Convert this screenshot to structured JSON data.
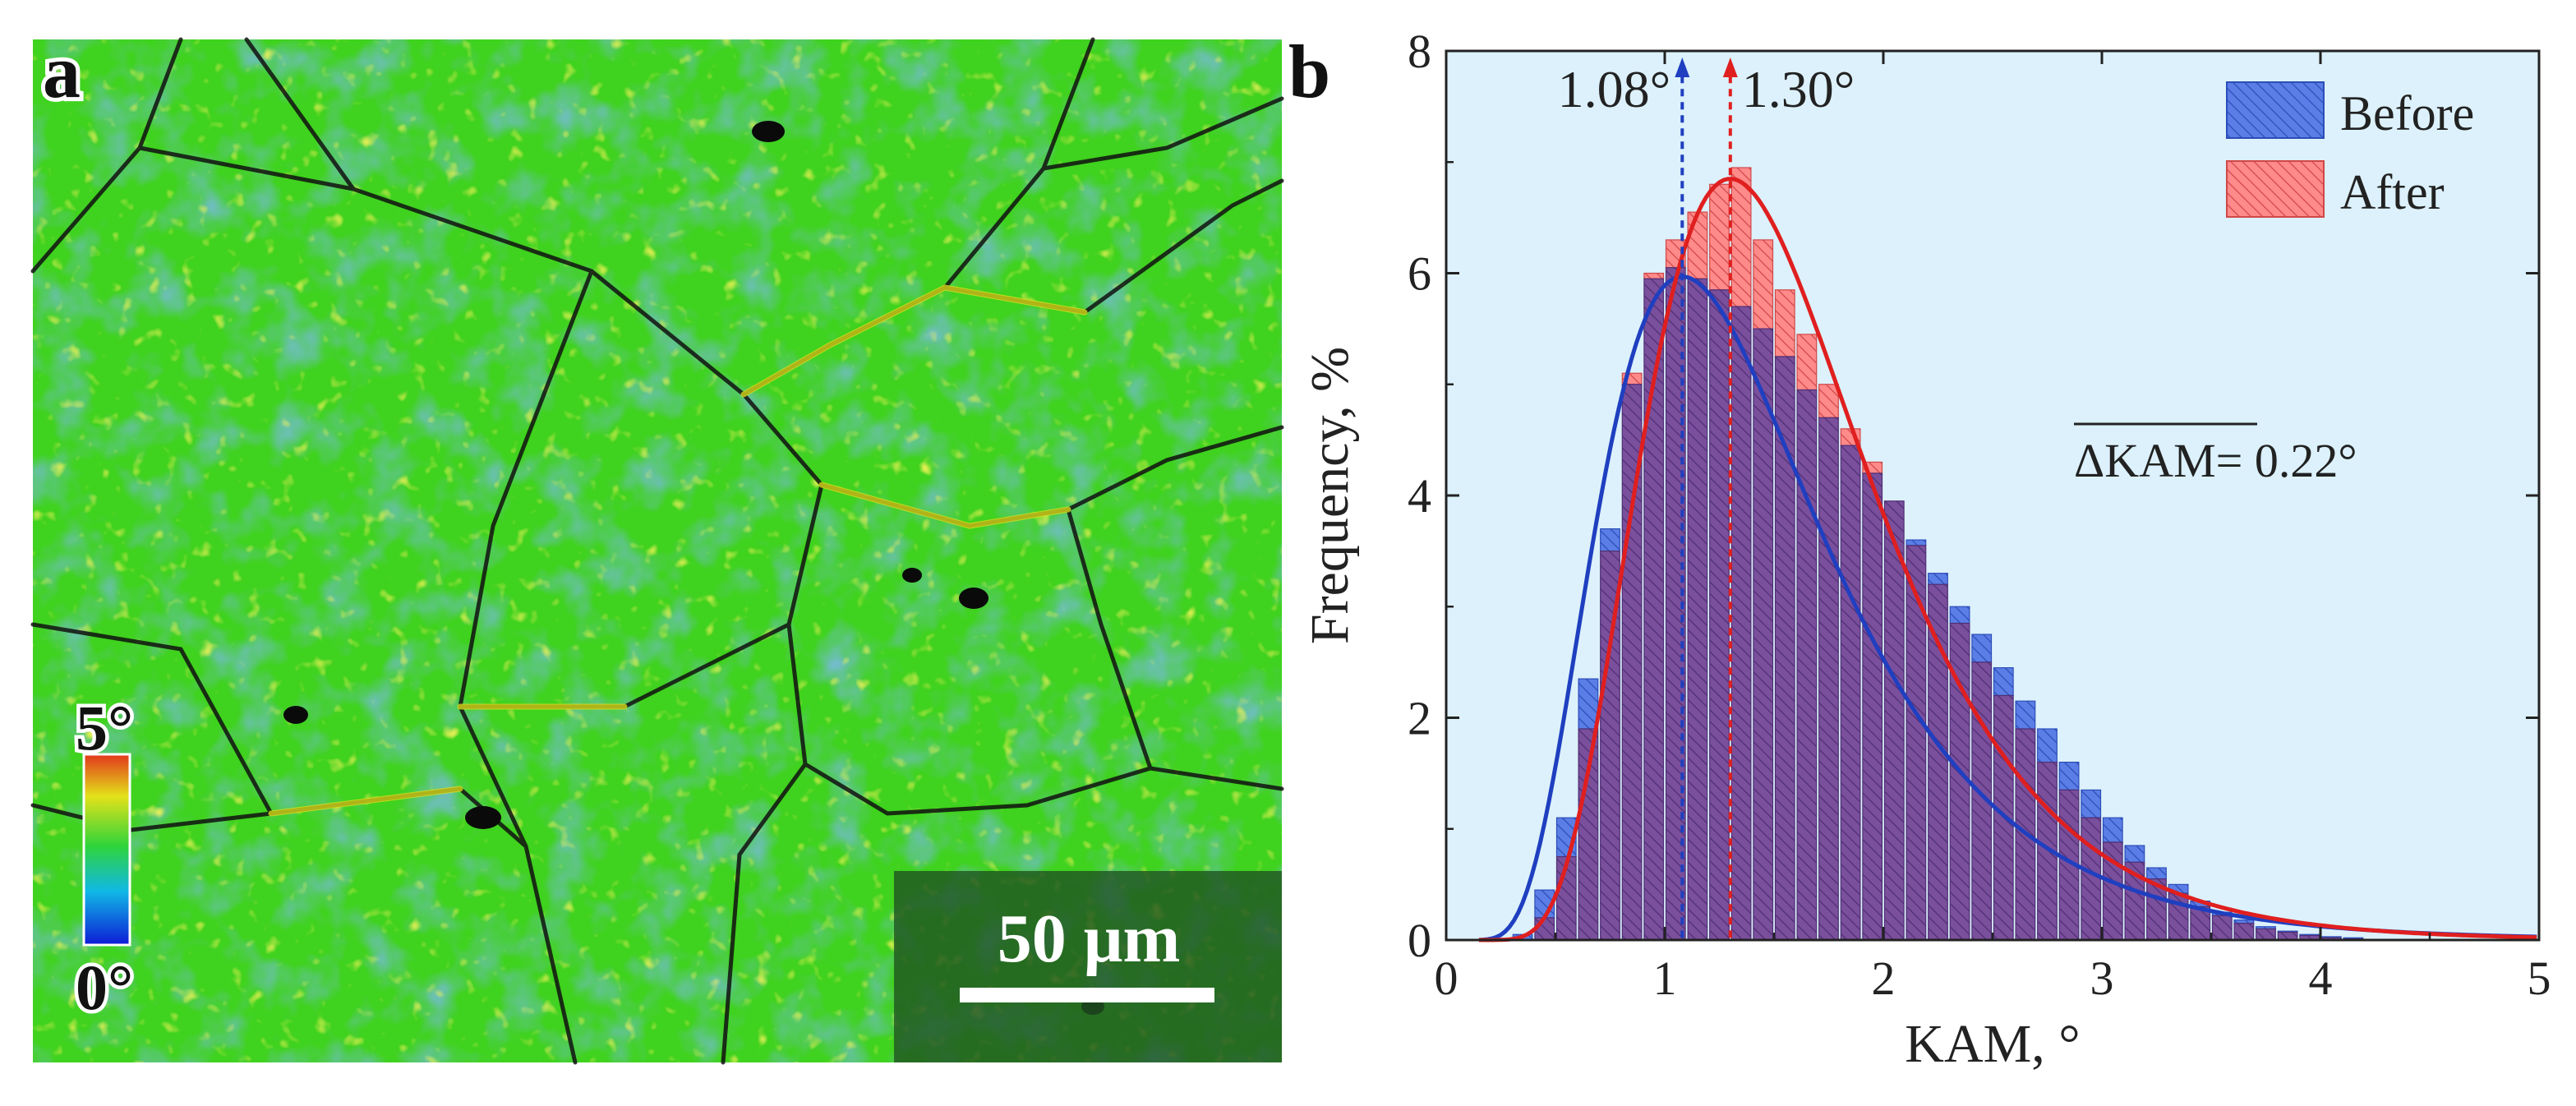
{
  "panel_a": {
    "label": "a",
    "colorbar_max": "5°",
    "colorbar_min": "0°",
    "scale_bar": "50 μm",
    "colors": {
      "base": "#3fd21e",
      "grain": "#2f7fa8",
      "boundary": "#111111",
      "highlight": "#e3e21a",
      "colorbar_stops": [
        "#0d1bd6",
        "#10b8e6",
        "#2fd43a",
        "#e3e21a",
        "#e2361c"
      ]
    }
  },
  "panel_b": {
    "label": "b"
  },
  "chart_data": {
    "type": "bar",
    "title": "",
    "xlabel": "KAM, °",
    "ylabel": "Frequency, %",
    "xlim": [
      0,
      5
    ],
    "ylim": [
      0,
      8
    ],
    "xticks": [
      "0",
      "1",
      "2",
      "3",
      "4",
      "5"
    ],
    "yticks": [
      "0",
      "2",
      "4",
      "6",
      "8"
    ],
    "bin_width": 0.1,
    "bin_centers": [
      0.35,
      0.45,
      0.55,
      0.65,
      0.75,
      0.85,
      0.95,
      1.05,
      1.15,
      1.25,
      1.35,
      1.45,
      1.55,
      1.65,
      1.75,
      1.85,
      1.95,
      2.05,
      2.15,
      2.25,
      2.35,
      2.45,
      2.55,
      2.65,
      2.75,
      2.85,
      2.95,
      3.05,
      3.15,
      3.25,
      3.35,
      3.45,
      3.55,
      3.65,
      3.75,
      3.85,
      3.95,
      4.05,
      4.15
    ],
    "series": [
      {
        "name": "Before",
        "color": "#4a6fe0",
        "fit_color": "#1f3fc0",
        "values": [
          0.05,
          0.45,
          1.1,
          2.35,
          3.7,
          5.0,
          5.95,
          6.05,
          5.95,
          5.85,
          5.7,
          5.5,
          5.25,
          4.95,
          4.7,
          4.45,
          4.2,
          3.95,
          3.6,
          3.3,
          3.0,
          2.75,
          2.45,
          2.15,
          1.9,
          1.6,
          1.35,
          1.1,
          0.85,
          0.65,
          0.5,
          0.35,
          0.25,
          0.18,
          0.12,
          0.08,
          0.05,
          0.03,
          0.02
        ]
      },
      {
        "name": "After",
        "color": "#ff8080",
        "fit_color": "#e01f1f",
        "values": [
          0.0,
          0.2,
          0.75,
          1.9,
          3.5,
          5.1,
          6.0,
          6.3,
          6.55,
          6.8,
          6.95,
          6.3,
          5.85,
          5.45,
          5.0,
          4.6,
          4.3,
          3.95,
          3.55,
          3.2,
          2.85,
          2.5,
          2.2,
          1.9,
          1.6,
          1.35,
          1.1,
          0.88,
          0.7,
          0.55,
          0.42,
          0.3,
          0.22,
          0.15,
          0.1,
          0.07,
          0.04,
          0.02,
          0.01
        ]
      }
    ],
    "fits": [
      {
        "name": "Before fit",
        "peak_x": 1.08,
        "peak_y": 5.97
      },
      {
        "name": "After fit",
        "peak_x": 1.3,
        "peak_y": 6.85
      }
    ],
    "annotations": [
      {
        "text": "1.08°",
        "x": 1.08,
        "color": "#1f3fc0"
      },
      {
        "text": "1.30°",
        "x": 1.3,
        "color": "#e01f1f"
      },
      {
        "text": "ΔKAM",
        "suffix": "= 0.22°"
      }
    ],
    "legend": {
      "position": "top-right",
      "items": [
        "Before",
        "After"
      ]
    },
    "background": "#dcf1fb"
  }
}
